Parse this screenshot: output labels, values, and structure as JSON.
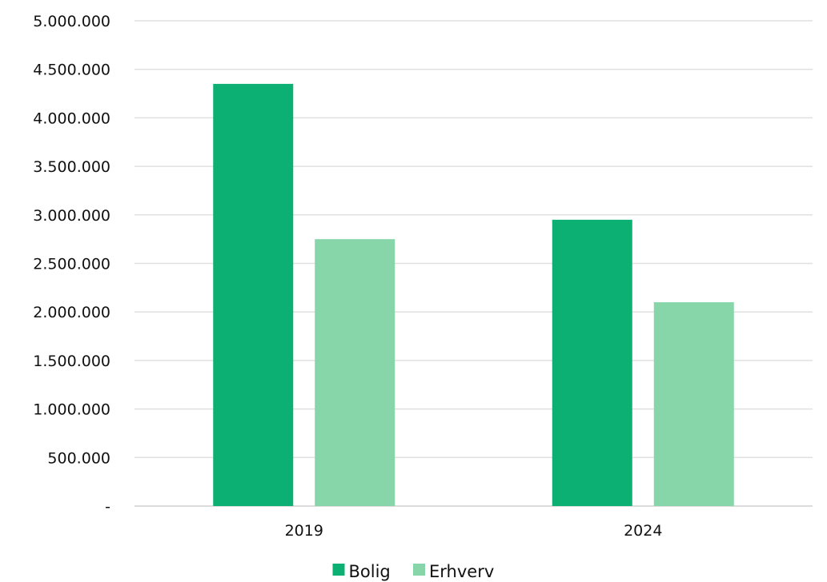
{
  "chart_data": {
    "type": "bar",
    "categories": [
      "2019",
      "2024"
    ],
    "series": [
      {
        "name": "Bolig",
        "values": [
          4350000,
          2950000
        ],
        "color": "#0cb073"
      },
      {
        "name": "Erhverv",
        "values": [
          2750000,
          2100000
        ],
        "color": "#86d6aa"
      }
    ],
    "y_ticks": [
      {
        "value": 0,
        "label": "-"
      },
      {
        "value": 500000,
        "label": "500.000"
      },
      {
        "value": 1000000,
        "label": "1.000.000"
      },
      {
        "value": 1500000,
        "label": "1.500.000"
      },
      {
        "value": 2000000,
        "label": "2.000.000"
      },
      {
        "value": 2500000,
        "label": "2.500.000"
      },
      {
        "value": 3000000,
        "label": "3.000.000"
      },
      {
        "value": 3500000,
        "label": "3.500.000"
      },
      {
        "value": 4000000,
        "label": "4.000.000"
      },
      {
        "value": 4500000,
        "label": "4.500.000"
      },
      {
        "value": 5000000,
        "label": "5.000.000"
      }
    ],
    "ylim": [
      0,
      5000000
    ],
    "grid": true,
    "gridline_color": "#e0e0e0",
    "legend_position": "bottom-center",
    "title": "",
    "xlabel": "",
    "ylabel": ""
  }
}
